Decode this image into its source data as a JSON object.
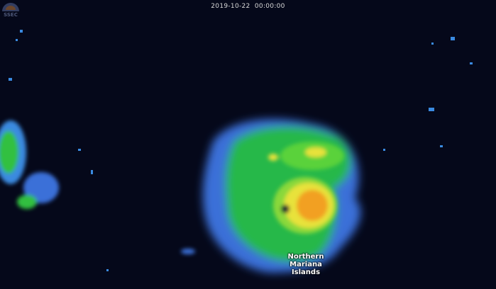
{
  "timestamp": "2019-10-22  00:00:00",
  "labels": {
    "place_line1": "Northern",
    "place_line2": "Mariana",
    "place_line3": "Islands"
  },
  "logo": {
    "text": "SSEC"
  },
  "colors": {
    "background": "#05081a",
    "light_rain": "#3b6fe0",
    "moderate": "#22c33a",
    "heavy": "#e8e23a",
    "intense": "#f29a1c"
  }
}
